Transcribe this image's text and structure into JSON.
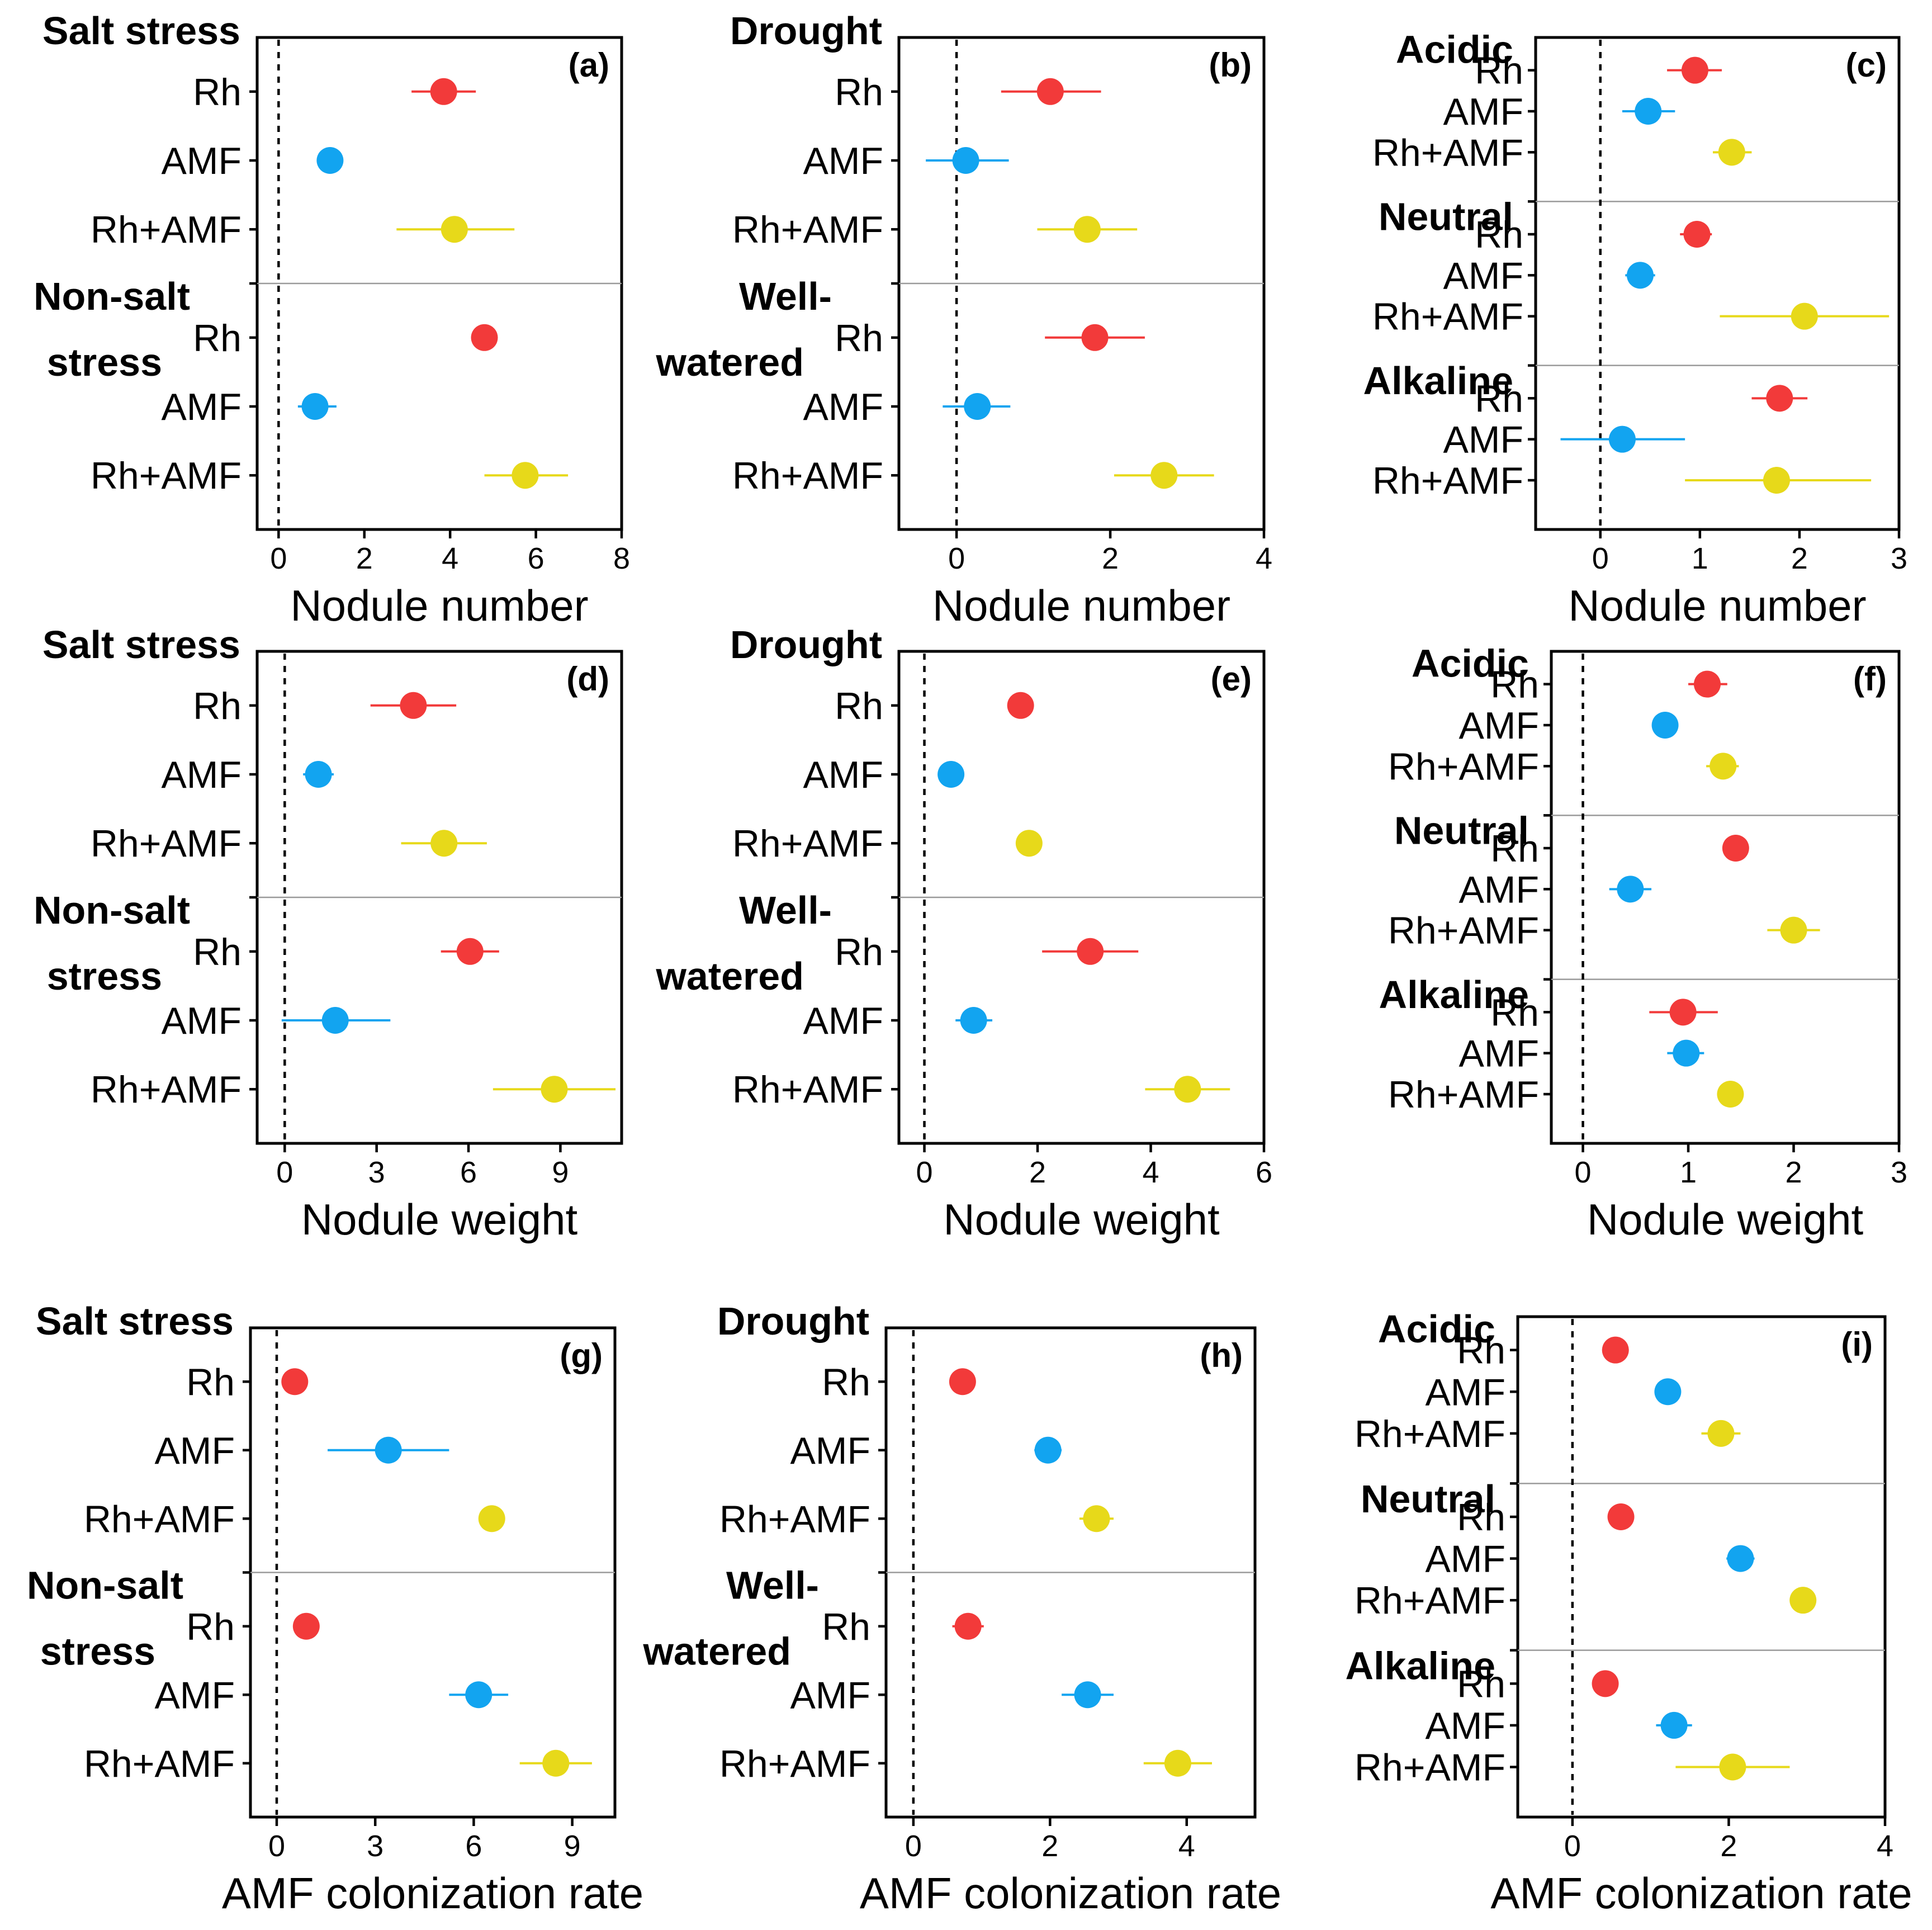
{
  "colors": {
    "Rh": "#f23a3a",
    "AMF": "#12a4f0",
    "Rh+AMF": "#e7d91a"
  },
  "chart_data": [
    {
      "id": "a",
      "type": "scatter",
      "panel_label": "(a)",
      "xlabel": "Nodule number",
      "xlim": [
        -0.5,
        8
      ],
      "xticks": [
        0,
        2,
        4,
        6,
        8
      ],
      "ytick_labels": "side",
      "groups": [
        {
          "name": "Salt stress",
          "series": [
            {
              "label": "Rh",
              "mean": 3.85,
              "low": 3.1,
              "high": 4.6
            },
            {
              "label": "AMF",
              "mean": 1.2,
              "low": 1.2,
              "high": 1.2
            },
            {
              "label": "Rh+AMF",
              "mean": 4.1,
              "low": 2.75,
              "high": 5.5
            }
          ]
        },
        {
          "name": "Non-salt stress",
          "name_lines": [
            "Non-salt",
            "stress"
          ],
          "series": [
            {
              "label": "Rh",
              "mean": 4.8,
              "low": 4.6,
              "high": 5.0
            },
            {
              "label": "AMF",
              "mean": 0.85,
              "low": 0.45,
              "high": 1.35
            },
            {
              "label": "Rh+AMF",
              "mean": 5.75,
              "low": 4.8,
              "high": 6.75
            }
          ]
        }
      ]
    },
    {
      "id": "b",
      "type": "scatter",
      "panel_label": "(b)",
      "xlabel": "Nodule number",
      "xlim": [
        -0.75,
        4
      ],
      "xticks": [
        0,
        2,
        4
      ],
      "ytick_labels": "side",
      "groups": [
        {
          "name": "Drought",
          "series": [
            {
              "label": "Rh",
              "mean": 1.22,
              "low": 0.58,
              "high": 1.88
            },
            {
              "label": "AMF",
              "mean": 0.12,
              "low": -0.4,
              "high": 0.68
            },
            {
              "label": "Rh+AMF",
              "mean": 1.7,
              "low": 1.05,
              "high": 2.35
            }
          ]
        },
        {
          "name": "Well-watered",
          "name_lines": [
            "Well-",
            "watered"
          ],
          "series": [
            {
              "label": "Rh",
              "mean": 1.8,
              "low": 1.15,
              "high": 2.45
            },
            {
              "label": "AMF",
              "mean": 0.27,
              "low": -0.18,
              "high": 0.7
            },
            {
              "label": "Rh+AMF",
              "mean": 2.7,
              "low": 2.05,
              "high": 3.35
            }
          ]
        }
      ]
    },
    {
      "id": "c",
      "type": "scatter",
      "panel_label": "(c)",
      "xlabel": "Nodule number",
      "xlim": [
        -0.65,
        3
      ],
      "xticks": [
        0,
        1,
        2,
        3
      ],
      "ytick_labels": "stacked",
      "groups": [
        {
          "name": "Acidic",
          "series": [
            {
              "label": "Rh",
              "mean": 0.95,
              "low": 0.67,
              "high": 1.22
            },
            {
              "label": "AMF",
              "mean": 0.48,
              "low": 0.22,
              "high": 0.75
            },
            {
              "label": "Rh+AMF",
              "mean": 1.32,
              "low": 1.13,
              "high": 1.52
            }
          ]
        },
        {
          "name": "Neutral",
          "series": [
            {
              "label": "Rh",
              "mean": 0.97,
              "low": 0.8,
              "high": 1.12
            },
            {
              "label": "AMF",
              "mean": 0.4,
              "low": 0.25,
              "high": 0.55
            },
            {
              "label": "Rh+AMF",
              "mean": 2.05,
              "low": 1.2,
              "high": 2.9
            }
          ]
        },
        {
          "name": "Alkaline",
          "series": [
            {
              "label": "Rh",
              "mean": 1.8,
              "low": 1.52,
              "high": 2.08
            },
            {
              "label": "AMF",
              "mean": 0.22,
              "low": -0.4,
              "high": 0.85
            },
            {
              "label": "Rh+AMF",
              "mean": 1.77,
              "low": 0.85,
              "high": 2.72
            }
          ]
        }
      ]
    },
    {
      "id": "d",
      "type": "scatter",
      "panel_label": "(d)",
      "xlabel": "Nodule weight",
      "xlim": [
        -0.9,
        11
      ],
      "xticks": [
        0,
        3,
        6,
        9
      ],
      "ytick_labels": "side",
      "groups": [
        {
          "name": "Salt stress",
          "series": [
            {
              "label": "Rh",
              "mean": 4.2,
              "low": 2.8,
              "high": 5.6
            },
            {
              "label": "AMF",
              "mean": 1.1,
              "low": 0.6,
              "high": 1.6
            },
            {
              "label": "Rh+AMF",
              "mean": 5.2,
              "low": 3.8,
              "high": 6.6
            }
          ]
        },
        {
          "name": "Non-salt stress",
          "name_lines": [
            "Non-salt",
            "stress"
          ],
          "series": [
            {
              "label": "Rh",
              "mean": 6.05,
              "low": 5.1,
              "high": 7.0
            },
            {
              "label": "AMF",
              "mean": 1.65,
              "low": -0.1,
              "high": 3.45
            },
            {
              "label": "Rh+AMF",
              "mean": 8.8,
              "low": 6.8,
              "high": 10.8
            }
          ]
        }
      ]
    },
    {
      "id": "e",
      "type": "scatter",
      "panel_label": "(e)",
      "xlabel": "Nodule weight",
      "xlim": [
        -0.45,
        6
      ],
      "xticks": [
        0,
        2,
        4,
        6
      ],
      "ytick_labels": "side",
      "groups": [
        {
          "name": "Drought",
          "series": [
            {
              "label": "Rh",
              "mean": 1.7,
              "low": 1.6,
              "high": 1.82
            },
            {
              "label": "AMF",
              "mean": 0.47,
              "low": 0.38,
              "high": 0.58
            },
            {
              "label": "Rh+AMF",
              "mean": 1.85,
              "low": 1.85,
              "high": 1.85
            }
          ]
        },
        {
          "name": "Well-watered",
          "name_lines": [
            "Well-",
            "watered"
          ],
          "series": [
            {
              "label": "Rh",
              "mean": 2.93,
              "low": 2.08,
              "high": 3.78
            },
            {
              "label": "AMF",
              "mean": 0.87,
              "low": 0.55,
              "high": 1.2
            },
            {
              "label": "Rh+AMF",
              "mean": 4.65,
              "low": 3.9,
              "high": 5.4
            }
          ]
        }
      ]
    },
    {
      "id": "f",
      "type": "scatter",
      "panel_label": "(f)",
      "xlabel": "Nodule weight",
      "xlim": [
        -0.3,
        3
      ],
      "xticks": [
        0,
        1,
        2,
        3
      ],
      "ytick_labels": "stacked",
      "groups": [
        {
          "name": "Acidic",
          "series": [
            {
              "label": "Rh",
              "mean": 1.18,
              "low": 1.0,
              "high": 1.37
            },
            {
              "label": "AMF",
              "mean": 0.78,
              "low": 0.67,
              "high": 0.88
            },
            {
              "label": "Rh+AMF",
              "mean": 1.33,
              "low": 1.17,
              "high": 1.48
            }
          ]
        },
        {
          "name": "Neutral",
          "series": [
            {
              "label": "Rh",
              "mean": 1.45,
              "low": 1.38,
              "high": 1.52
            },
            {
              "label": "AMF",
              "mean": 0.45,
              "low": 0.25,
              "high": 0.65
            },
            {
              "label": "Rh+AMF",
              "mean": 2.0,
              "low": 1.75,
              "high": 2.25
            }
          ]
        },
        {
          "name": "Alkaline",
          "series": [
            {
              "label": "Rh",
              "mean": 0.95,
              "low": 0.63,
              "high": 1.28
            },
            {
              "label": "AMF",
              "mean": 0.98,
              "low": 0.8,
              "high": 1.15
            },
            {
              "label": "Rh+AMF",
              "mean": 1.4,
              "low": 1.32,
              "high": 1.48
            }
          ]
        }
      ]
    },
    {
      "id": "g",
      "type": "scatter",
      "panel_label": "(g)",
      "xlabel": "AMF colonization rate",
      "xlim": [
        -0.8,
        10.3
      ],
      "xticks": [
        0,
        3,
        6,
        9
      ],
      "ytick_labels": "side",
      "groups": [
        {
          "name": "Salt stress",
          "series": [
            {
              "label": "Rh",
              "mean": 0.55,
              "low": 0.35,
              "high": 0.75
            },
            {
              "label": "AMF",
              "mean": 3.4,
              "low": 1.55,
              "high": 5.25
            },
            {
              "label": "Rh+AMF",
              "mean": 6.55,
              "low": 6.45,
              "high": 6.65
            }
          ]
        },
        {
          "name": "Non-salt stress",
          "name_lines": [
            "Non-salt",
            "stress"
          ],
          "series": [
            {
              "label": "Rh",
              "mean": 0.9,
              "low": 0.75,
              "high": 1.05
            },
            {
              "label": "AMF",
              "mean": 6.15,
              "low": 5.25,
              "high": 7.05
            },
            {
              "label": "Rh+AMF",
              "mean": 8.5,
              "low": 7.4,
              "high": 9.6
            }
          ]
        }
      ]
    },
    {
      "id": "h",
      "type": "scatter",
      "panel_label": "(h)",
      "xlabel": "AMF colonization rate",
      "xlim": [
        -0.4,
        5
      ],
      "xticks": [
        0,
        2,
        4
      ],
      "ytick_labels": "side",
      "groups": [
        {
          "name": "Drought",
          "series": [
            {
              "label": "Rh",
              "mean": 0.72,
              "low": 0.55,
              "high": 0.9
            },
            {
              "label": "AMF",
              "mean": 1.97,
              "low": 1.77,
              "high": 2.17
            },
            {
              "label": "Rh+AMF",
              "mean": 2.68,
              "low": 2.43,
              "high": 2.93
            }
          ]
        },
        {
          "name": "Well-watered",
          "name_lines": [
            "Well-",
            "watered"
          ],
          "series": [
            {
              "label": "Rh",
              "mean": 0.8,
              "low": 0.57,
              "high": 1.03
            },
            {
              "label": "AMF",
              "mean": 2.55,
              "low": 2.17,
              "high": 2.93
            },
            {
              "label": "Rh+AMF",
              "mean": 3.87,
              "low": 3.37,
              "high": 4.37
            }
          ]
        }
      ]
    },
    {
      "id": "i",
      "type": "scatter",
      "panel_label": "(i)",
      "xlabel": "AMF colonization rate",
      "xlim": [
        -0.7,
        4
      ],
      "xticks": [
        0,
        2,
        4
      ],
      "ytick_labels": "stacked",
      "groups": [
        {
          "name": "Acidic",
          "series": [
            {
              "label": "Rh",
              "mean": 0.55,
              "low": 0.4,
              "high": 0.7
            },
            {
              "label": "AMF",
              "mean": 1.22,
              "low": 1.22,
              "high": 1.22
            },
            {
              "label": "Rh+AMF",
              "mean": 1.9,
              "low": 1.65,
              "high": 2.15
            }
          ]
        },
        {
          "name": "Neutral",
          "series": [
            {
              "label": "Rh",
              "mean": 0.62,
              "low": 0.62,
              "high": 0.62
            },
            {
              "label": "AMF",
              "mean": 2.15,
              "low": 1.97,
              "high": 2.33
            },
            {
              "label": "Rh+AMF",
              "mean": 2.95,
              "low": 2.8,
              "high": 3.1
            }
          ]
        },
        {
          "name": "Alkaline",
          "series": [
            {
              "label": "Rh",
              "mean": 0.42,
              "low": 0.42,
              "high": 0.42
            },
            {
              "label": "AMF",
              "mean": 1.3,
              "low": 1.07,
              "high": 1.53
            },
            {
              "label": "Rh+AMF",
              "mean": 2.05,
              "low": 1.32,
              "high": 2.78
            }
          ]
        }
      ]
    }
  ]
}
